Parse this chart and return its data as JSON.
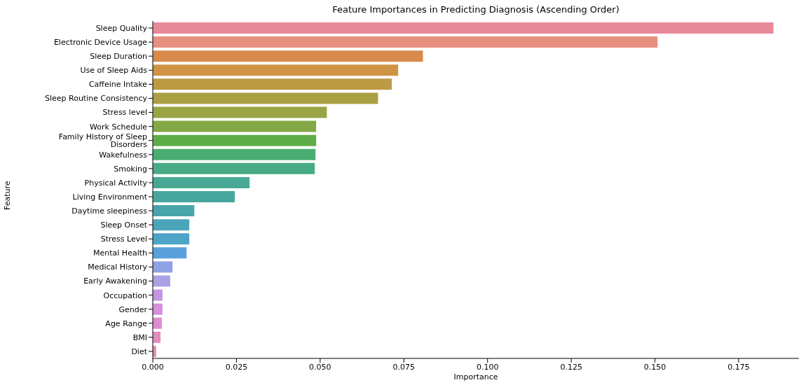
{
  "chart_data": {
    "type": "bar",
    "orientation": "horizontal",
    "title": "Feature Importances in Predicting Diagnosis (Ascending Order)",
    "xlabel": "Importance",
    "ylabel": "Feature",
    "categories": [
      "Sleep Quality",
      "Electronic Device Usage",
      "Sleep Duration",
      "Use of Sleep Aids",
      "Caffeine Intake",
      "Sleep Routine Consistency",
      "Stress level",
      "Work Schedule",
      "Family History of Sleep Disorders",
      "Wakefulness",
      "Smoking",
      "Physical Activity",
      "Living Environment",
      "Daytime sleepiness",
      "Sleep Onset",
      "Stress Level",
      "Mental Health",
      "Medical History",
      "Early Awakening",
      "Occupation",
      "Gender",
      "Age Range",
      "BMI",
      "Diet"
    ],
    "values": [
      0.1854,
      0.1508,
      0.0807,
      0.0733,
      0.0714,
      0.0673,
      0.052,
      0.0488,
      0.0488,
      0.0486,
      0.0484,
      0.0289,
      0.0245,
      0.0124,
      0.0109,
      0.0109,
      0.0101,
      0.0059,
      0.0052,
      0.0029,
      0.0029,
      0.0027,
      0.0023,
      0.001
    ],
    "colors": [
      "#e8899a",
      "#e8907f",
      "#d9894a",
      "#ce9444",
      "#bd9a44",
      "#ab9f44",
      "#9aa444",
      "#84a845",
      "#5fad48",
      "#4aae72",
      "#48ab86",
      "#47a994",
      "#47a79f",
      "#48a6ab",
      "#4aa5b9",
      "#4ea3c9",
      "#5aa0dc",
      "#8fa2e6",
      "#a9a0e6",
      "#c595e4",
      "#d68fdc",
      "#e08bcd",
      "#e589be",
      "#e889ab"
    ],
    "xlim": [
      0,
      0.193
    ],
    "xticks": [
      {
        "value": 0,
        "label": "0.000"
      },
      {
        "value": 0.025,
        "label": "0.025"
      },
      {
        "value": 0.05,
        "label": "0.050"
      },
      {
        "value": 0.075,
        "label": "0.075"
      },
      {
        "value": 0.1,
        "label": "0.100"
      },
      {
        "value": 0.125,
        "label": "0.125"
      },
      {
        "value": 0.15,
        "label": "0.150"
      },
      {
        "value": 0.175,
        "label": "0.175"
      }
    ],
    "grid": false,
    "legend": false
  }
}
